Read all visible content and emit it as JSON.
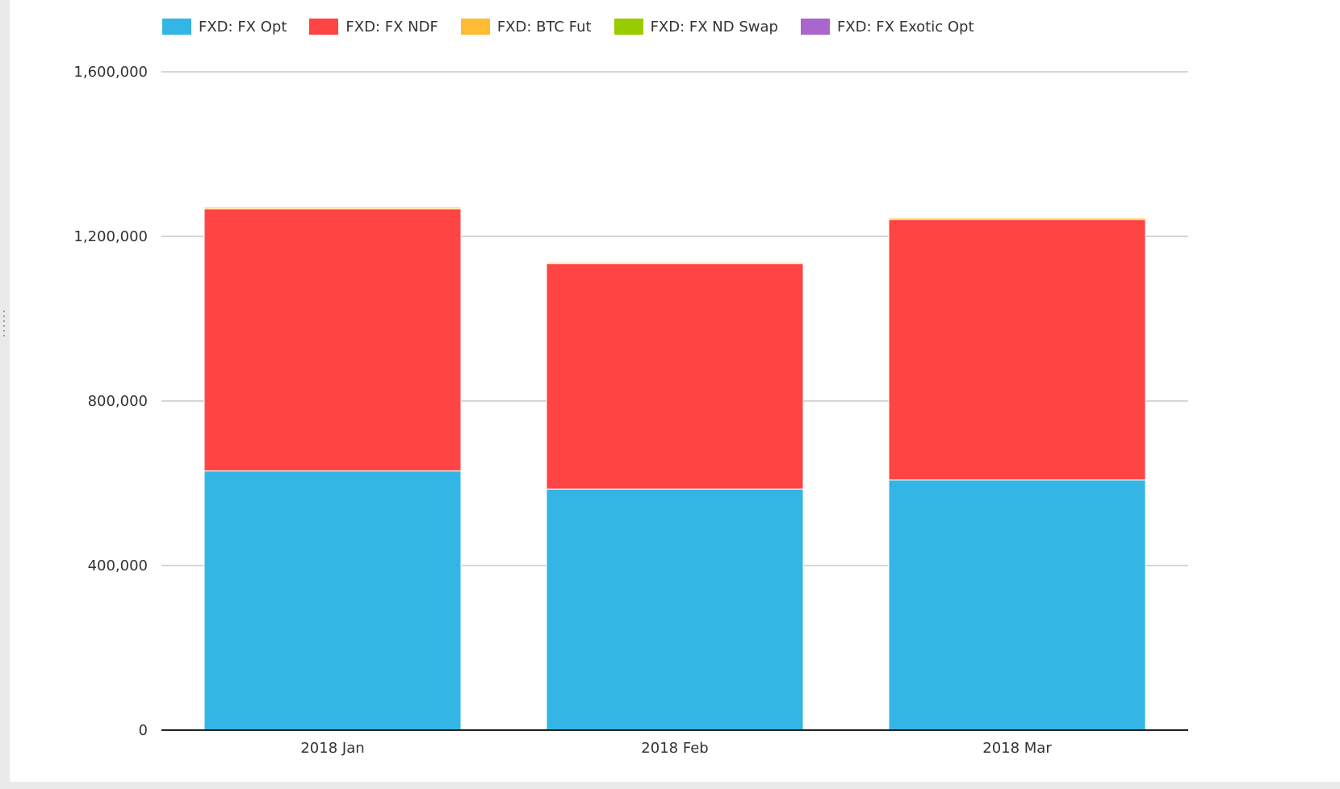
{
  "chart_data": {
    "type": "bar",
    "stacked": true,
    "categories": [
      "2018 Jan",
      "2018 Feb",
      "2018 Mar"
    ],
    "series": [
      {
        "name": "FXD: FX Opt",
        "color": "#33b5e5",
        "values": [
          630000,
          586000,
          608000
        ]
      },
      {
        "name": "FXD: FX NDF",
        "color": "#ff4444",
        "values": [
          637000,
          548000,
          633000
        ]
      },
      {
        "name": "FXD: BTC Fut",
        "color": "#ffbb33",
        "values": [
          4000,
          3000,
          4000
        ]
      },
      {
        "name": "FXD: FX ND Swap",
        "color": "#99cc00",
        "values": [
          1000,
          1000,
          1000
        ]
      },
      {
        "name": "FXD: FX Exotic Opt",
        "color": "#aa66cc",
        "values": [
          500,
          500,
          500
        ]
      }
    ],
    "y_ticks": [
      "0",
      "400,000",
      "800,000",
      "1,200,000",
      "1,600,000"
    ],
    "ylim": [
      0,
      1600000
    ],
    "grid": true,
    "legend_position": "top"
  }
}
